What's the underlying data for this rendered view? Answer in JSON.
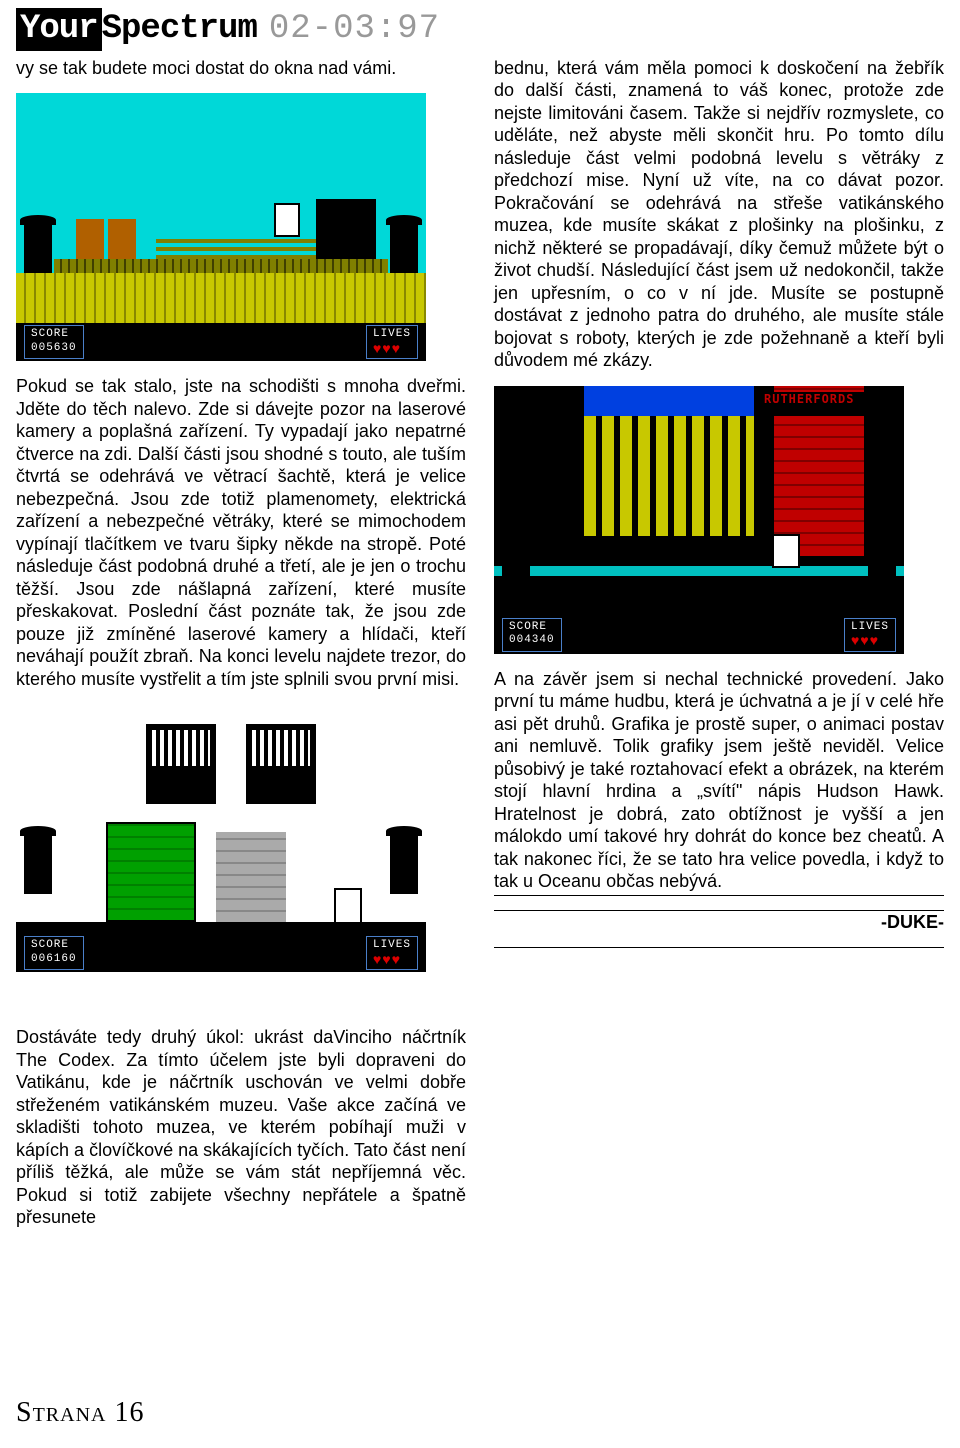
{
  "header": {
    "title_black": "Your",
    "title_rest": "Spectrum",
    "issue": "02-03:97"
  },
  "col1": {
    "p1": "vy se tak budete moci dostat do okna nad vámi.",
    "p2": "Pokud se tak stalo, jste na schodišti s mnoha dveřmi. Jděte do těch nalevo. Zde si dávejte pozor na laserové kamery a poplašná zařízení. Ty vypadají jako nepatrné čtverce na zdi. Další části jsou shodné s touto, ale tuším čtvrtá se odehrává ve větrací šachtě, která je velice nebezpečná. Jsou zde totiž plamenomety, elektrická zařízení a nebezpečné větráky, které se mimochodem vypínají tlačítkem ve tvaru šipky někde na stropě. Poté následuje část podobná druhé a třetí, ale je jen o trochu těžší. Jsou zde nášlapná zařízení, které musíte přeskakovat. Poslední část poznáte tak, že jsou zde pouze již zmíněné laserové kamery a hlídači, kteří neváhají použít zbraň. Na konci levelu najdete trezor, do kterého musíte vystřelit a tím jste splnili svou první misi.",
    "p3": "Dostáváte tedy druhý úkol: ukrást daVinciho náčrtník The Codex. Za tímto účelem jste byli dopraveni do Vatikánu, kde je náčrtník uschován ve velmi dobře střeženém vatikánském muzeu. Vaše akce začíná ve skladišti tohoto muzea, ve kterém pobíhají muži v kápích a človíčkové na skákajících tyčích. Tato část není příliš těžká, ale může se vám stát nepříjemná věc. Pokud si totiž zabijete všechny nepřátele a špatně přesunete"
  },
  "col2": {
    "p1": "bednu, která vám měla pomoci k doskočení na žebřík do další části, znamená to váš konec, protože zde nejste limitováni časem. Takže si nejdřív rozmyslete, co uděláte, než abyste měli skončit hru. Po tomto dílu následuje část velmi podobná levelu s větráky z předchozí mise. Nyní už víte, na co dávat pozor. Pokračování se odehrává na střeše vatikánského muzea, kde musíte skákat z plošinky na plošinku, z nichž některé se propadávají, díky čemuž můžete být o život chudší. Následující část jsem už nedokončil, takže jen upřesním, o co v ní jde. Musíte se postupně dostávat z jednoho patra do druhého, ale musíte stále bojovat s roboty, kterých je zde požehnaně a kteří byli důvodem mé zkázy.",
    "p2": "A na závěr jsem si nechal technické provedení. Jako první tu máme hudbu, která je úchvatná a je jí v celé hře asi pět druhů. Grafika je prostě super, o animaci postav ani nemluvě. Tolik grafiky jsem ještě neviděl. Velice působivý je také roztahovací efekt a obrázek, na kterém stojí hlavní hrdina a „svítí\" nápis Hudson Hawk. Hratelnost je dobrá, zato obtížnost je vyšší a jen málokdo umí takové hry dohrát do konce bez cheatů. A tak nakonec říci, že se tato hra velice povedla, i když to tak u Oceanu občas nebývá."
  },
  "signature": "-DUKE-",
  "shots": {
    "s1": {
      "score_label": "SCORE",
      "score": "005630",
      "lives_label": "LIVES"
    },
    "s2": {
      "score_label": "SCORE",
      "score": "006160",
      "lives_label": "LIVES"
    },
    "s3": {
      "score_label": "SCORE",
      "score": "004340",
      "lives_label": "LIVES",
      "store": "RUTHERFORDS"
    }
  },
  "footer": "Strana 16"
}
